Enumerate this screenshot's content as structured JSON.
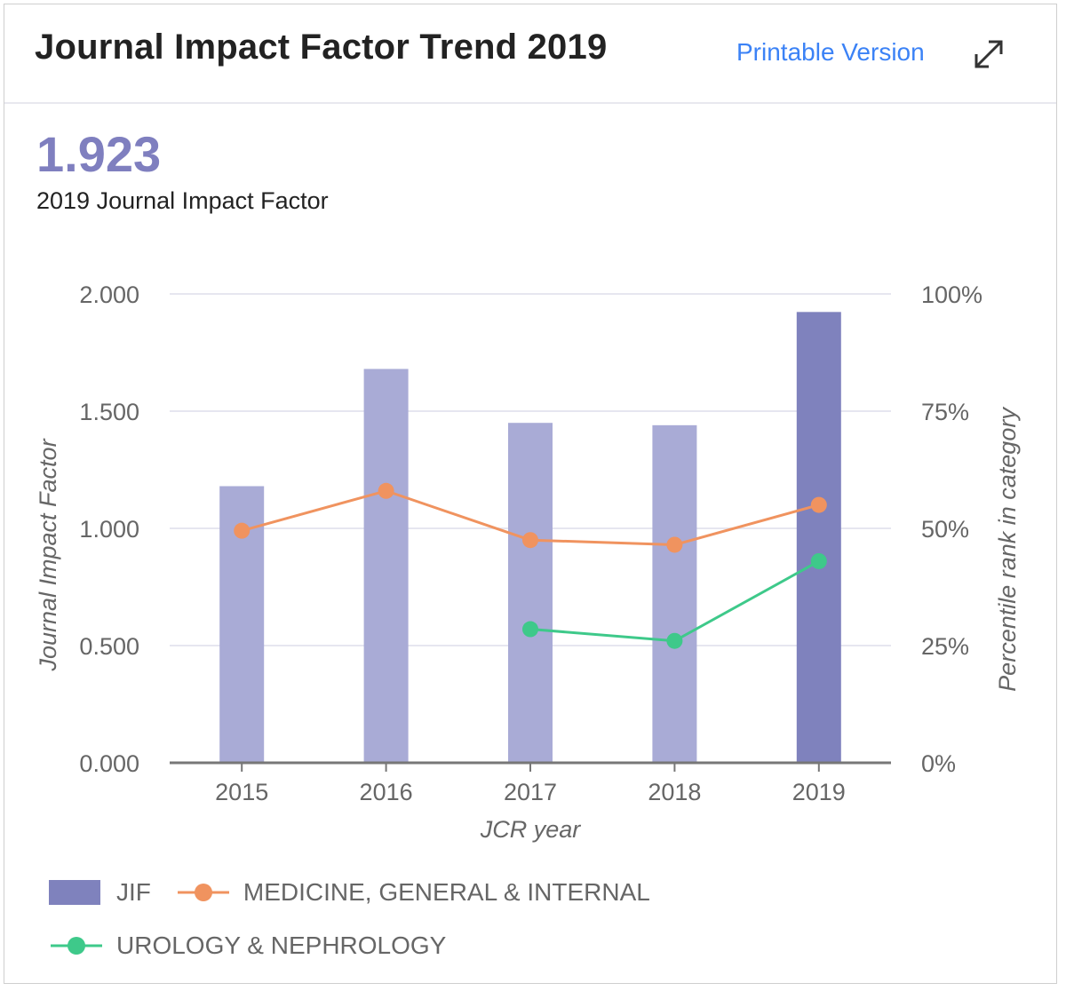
{
  "header": {
    "title": "Journal Impact Factor Trend 2019",
    "printable_label": "Printable Version",
    "expand_icon": "expand-icon"
  },
  "summary": {
    "value": "1.923",
    "caption": "2019 Journal Impact Factor"
  },
  "colors": {
    "jif_bar": "#a9abd6",
    "jif_bar_current": "#7f82bd",
    "medicine": "#f0935f",
    "urology": "#3ec98a",
    "grid": "#e6e6f0",
    "axis_text": "#666666"
  },
  "chart_data": {
    "type": "bar",
    "categories": [
      "2015",
      "2016",
      "2017",
      "2018",
      "2019"
    ],
    "xlabel": "JCR year",
    "ylabel": "Journal Impact Factor",
    "ylabel_right": "Percentile rank in category",
    "ylim": [
      0,
      2
    ],
    "ylim_right": [
      0,
      100
    ],
    "yticks": [
      "0.000",
      "0.500",
      "1.000",
      "1.500",
      "2.000"
    ],
    "yticks_right": [
      "0%",
      "25%",
      "50%",
      "75%",
      "100%"
    ],
    "grid": true,
    "legend_position": "bottom",
    "series": [
      {
        "name": "JIF",
        "type": "bar",
        "axis": "left",
        "values": [
          1.18,
          1.68,
          1.45,
          1.44,
          1.923
        ]
      },
      {
        "name": "MEDICINE, GENERAL & INTERNAL",
        "type": "line",
        "axis": "right",
        "values": [
          49.5,
          58,
          47.5,
          46.5,
          55
        ]
      },
      {
        "name": "UROLOGY & NEPHROLOGY",
        "type": "line",
        "axis": "right",
        "values": [
          null,
          null,
          28.5,
          26,
          43
        ]
      }
    ]
  }
}
